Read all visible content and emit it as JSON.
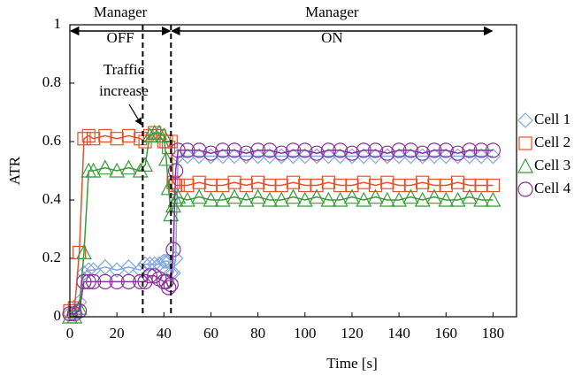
{
  "chart_data": {
    "type": "line",
    "xlabel": "Time [s]",
    "ylabel": "ATR",
    "xlim": [
      0,
      190
    ],
    "ylim": [
      0,
      1
    ],
    "xticks": [
      0,
      20,
      40,
      60,
      80,
      100,
      120,
      140,
      160,
      180
    ],
    "yticks": [
      0,
      0.2,
      0.4,
      0.6,
      0.8,
      1
    ],
    "x": [
      0,
      2,
      4,
      6,
      8,
      10,
      15,
      20,
      25,
      30,
      32,
      34,
      36,
      38,
      40,
      41,
      42,
      43,
      44,
      45,
      46,
      50,
      55,
      60,
      65,
      70,
      75,
      80,
      85,
      90,
      95,
      100,
      105,
      110,
      115,
      120,
      125,
      130,
      135,
      140,
      145,
      150,
      155,
      160,
      165,
      170,
      175,
      180
    ],
    "series": [
      {
        "name": "Cell 1",
        "color": "#7fa7dc",
        "marker": "diamond",
        "values": [
          0.01,
          0.01,
          0.05,
          0.15,
          0.16,
          0.16,
          0.17,
          0.16,
          0.17,
          0.16,
          0.18,
          0.18,
          0.18,
          0.18,
          0.19,
          0.19,
          0.19,
          0.15,
          0.15,
          0.2,
          0.55,
          0.55,
          0.55,
          0.55,
          0.55,
          0.55,
          0.55,
          0.55,
          0.55,
          0.55,
          0.55,
          0.55,
          0.55,
          0.55,
          0.55,
          0.55,
          0.55,
          0.55,
          0.55,
          0.55,
          0.55,
          0.55,
          0.55,
          0.55,
          0.55,
          0.55,
          0.55,
          0.55
        ]
      },
      {
        "name": "Cell 2",
        "color": "#e8502a",
        "marker": "square",
        "values": [
          0.02,
          0.03,
          0.22,
          0.61,
          0.62,
          0.61,
          0.62,
          0.61,
          0.62,
          0.61,
          0.6,
          0.62,
          0.63,
          0.62,
          0.6,
          0.6,
          0.58,
          0.6,
          0.46,
          0.45,
          0.45,
          0.45,
          0.46,
          0.45,
          0.45,
          0.46,
          0.45,
          0.46,
          0.45,
          0.45,
          0.46,
          0.45,
          0.45,
          0.46,
          0.45,
          0.45,
          0.46,
          0.45,
          0.46,
          0.45,
          0.45,
          0.46,
          0.45,
          0.45,
          0.46,
          0.45,
          0.45,
          0.45
        ]
      },
      {
        "name": "Cell 3",
        "color": "#3a9a3a",
        "marker": "triangle",
        "values": [
          0.0,
          0.0,
          0.03,
          0.22,
          0.5,
          0.5,
          0.51,
          0.5,
          0.51,
          0.5,
          0.52,
          0.62,
          0.63,
          0.63,
          0.62,
          0.54,
          0.44,
          0.35,
          0.38,
          0.4,
          0.41,
          0.4,
          0.41,
          0.4,
          0.4,
          0.41,
          0.4,
          0.41,
          0.4,
          0.4,
          0.41,
          0.4,
          0.41,
          0.4,
          0.4,
          0.41,
          0.4,
          0.41,
          0.4,
          0.4,
          0.41,
          0.4,
          0.41,
          0.4,
          0.4,
          0.41,
          0.4,
          0.4
        ]
      },
      {
        "name": "Cell 4",
        "color": "#8b2f9e",
        "marker": "circle",
        "values": [
          0.01,
          0.01,
          0.02,
          0.12,
          0.12,
          0.12,
          0.12,
          0.12,
          0.12,
          0.12,
          0.12,
          0.14,
          0.14,
          0.13,
          0.12,
          0.12,
          0.1,
          0.11,
          0.23,
          0.5,
          0.57,
          0.57,
          0.57,
          0.56,
          0.57,
          0.57,
          0.56,
          0.57,
          0.57,
          0.56,
          0.57,
          0.57,
          0.56,
          0.57,
          0.57,
          0.56,
          0.57,
          0.57,
          0.56,
          0.57,
          0.57,
          0.56,
          0.57,
          0.57,
          0.56,
          0.57,
          0.57,
          0.57
        ]
      }
    ],
    "vlines": [
      31,
      43
    ],
    "regions": [
      {
        "label": [
          "Manager",
          "OFF"
        ],
        "from": 0,
        "to": 43
      },
      {
        "label": [
          "Manager",
          "ON"
        ],
        "from": 43,
        "to": 180
      }
    ],
    "annotation": {
      "text": [
        "Traffic",
        "increase"
      ]
    }
  }
}
